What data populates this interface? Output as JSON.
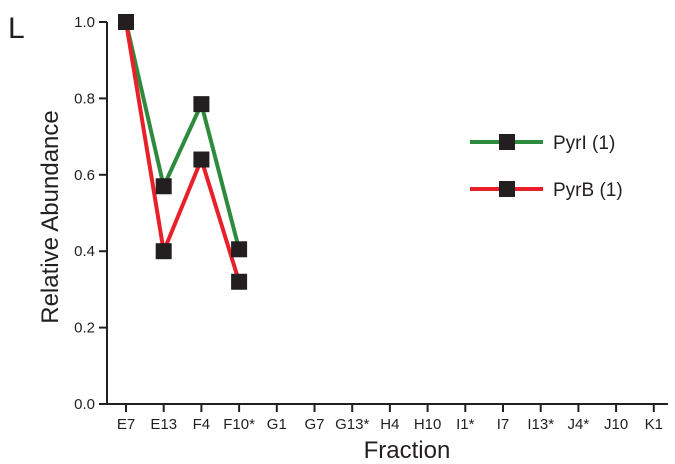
{
  "panel_label": "L",
  "chart_data": {
    "type": "line",
    "xlabel": "Fraction",
    "ylabel": "Relative Abundance",
    "categories": [
      "E7",
      "E13",
      "F4",
      "F10*",
      "G1",
      "G7",
      "G13*",
      "H4",
      "H10",
      "I1*",
      "I7",
      "I13*",
      "J4*",
      "J10",
      "K1"
    ],
    "ylim": [
      0.0,
      1.0
    ],
    "yticks": [
      "0.0",
      "0.2",
      "0.4",
      "0.6",
      "0.8",
      "1.0"
    ],
    "grid": false,
    "legend_position": "right",
    "series": [
      {
        "name": "PyrI (1)",
        "color": "#2e8b3e",
        "values": [
          1.0,
          0.57,
          0.785,
          0.405,
          null,
          null,
          null,
          null,
          null,
          null,
          null,
          null,
          null,
          null,
          null
        ]
      },
      {
        "name": "PyrB (1)",
        "color": "#e8202a",
        "values": [
          1.0,
          0.4,
          0.64,
          0.32,
          null,
          null,
          null,
          null,
          null,
          null,
          null,
          null,
          null,
          null,
          null
        ]
      }
    ],
    "marker_color": "#231f20"
  }
}
